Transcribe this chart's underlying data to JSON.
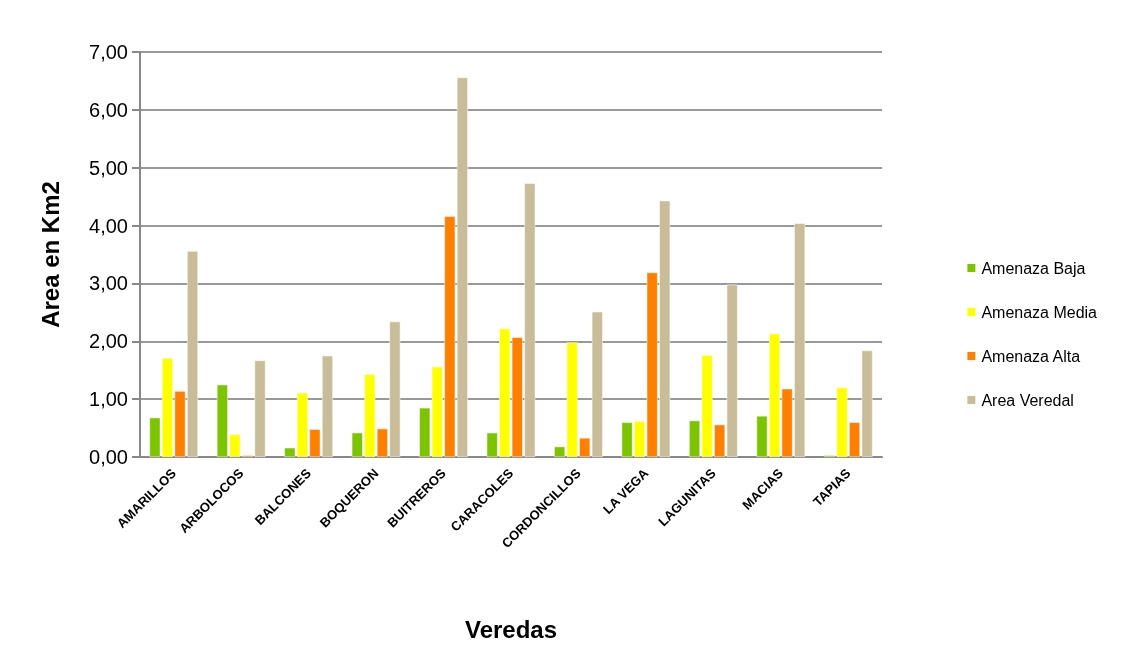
{
  "chart_data": {
    "type": "bar",
    "xlabel": "Veredas",
    "ylabel": "Area en Km2",
    "categories": [
      "AMARILLOS",
      "ARBOLOCOS",
      "BALCONES",
      "BOQUERON",
      "BUITREROS",
      "CARACOLES",
      "CORDONCILLOS",
      "LA VEGA",
      "LAGUNITAS",
      "MACIAS",
      "TAPIAS"
    ],
    "series": [
      {
        "name": "Amenaza Baja",
        "color": "#7dc400",
        "values": [
          0.68,
          1.25,
          0.16,
          0.42,
          0.85,
          0.42,
          0.18,
          0.6,
          0.63,
          0.71,
          0.03
        ]
      },
      {
        "name": "Amenaza Media",
        "color": "#ffff00",
        "values": [
          1.71,
          0.39,
          1.11,
          1.43,
          1.56,
          2.22,
          1.98,
          0.62,
          1.76,
          2.13,
          1.2
        ]
      },
      {
        "name": "Amenaza Alta",
        "color": "#ff8000",
        "values": [
          1.14,
          0.03,
          0.48,
          0.49,
          4.16,
          2.07,
          0.33,
          3.19,
          0.56,
          1.18,
          0.6
        ]
      },
      {
        "name": "Area Veredal",
        "color": "#c8bd98",
        "values": [
          3.56,
          1.67,
          1.75,
          2.34,
          6.56,
          4.73,
          2.51,
          4.43,
          2.98,
          4.04,
          1.84
        ]
      }
    ],
    "ylim": [
      0,
      7
    ],
    "yticks": [
      {
        "value": 0,
        "label": "0,00"
      },
      {
        "value": 1,
        "label": "1,00"
      },
      {
        "value": 2,
        "label": "2,00"
      },
      {
        "value": 3,
        "label": "3,00"
      },
      {
        "value": 4,
        "label": "4,00"
      },
      {
        "value": 5,
        "label": "5,00"
      },
      {
        "value": 6,
        "label": "6,00"
      },
      {
        "value": 7,
        "label": "7,00"
      }
    ],
    "grid": "y",
    "legend": "right"
  }
}
